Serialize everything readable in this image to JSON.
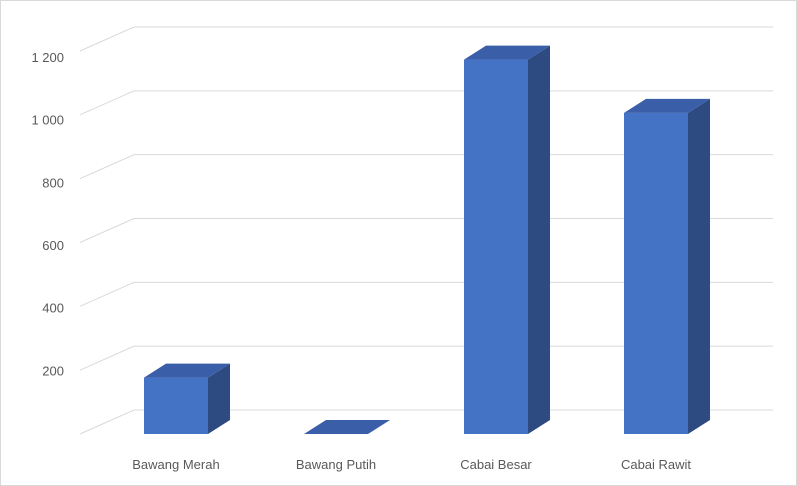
{
  "chart_data": {
    "type": "bar",
    "style": "3d-column",
    "title": "",
    "xlabel": "",
    "ylabel": "",
    "categories": [
      "Bawang Merah",
      "Bawang Putih",
      "Cabai Besar",
      "Cabai Rawit"
    ],
    "values": [
      180,
      0,
      1195,
      1025
    ],
    "ylim": [
      0,
      1200
    ],
    "y_ticks": [
      0,
      200,
      400,
      600,
      800,
      1000,
      1200
    ],
    "y_tick_labels": [
      "",
      "200",
      "400",
      "600",
      "800",
      "1 000",
      "1 200"
    ],
    "grid": true,
    "legend": "none",
    "colors": {
      "bar_front": "#4472c4",
      "bar_side": "#2d4b80",
      "bar_top": "#3a5ea8",
      "grid": "#d9d9d9",
      "text": "#595959"
    }
  }
}
